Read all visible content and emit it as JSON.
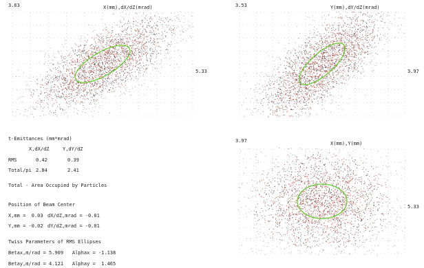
{
  "chart_data": [
    {
      "type": "scatter",
      "title": "X(mm),dX/dZ(mrad)",
      "x_max_label": "5.33",
      "y_max_label": "3.63",
      "xlim": [
        -5.33,
        5.33
      ],
      "ylim": [
        -3.63,
        3.63
      ],
      "grid": true,
      "ellipse": {
        "betax": 5.909,
        "alpha": -1.138,
        "rms_emittance": 0.42
      },
      "point_colors": [
        "#c0392b",
        "#555555",
        "#999999"
      ],
      "ellipse_color": "#66cc33"
    },
    {
      "type": "scatter",
      "title": "Y(mm),dY/dZ(mrad)",
      "x_max_label": "3.97",
      "y_max_label": "3.53",
      "xlim": [
        -3.97,
        3.97
      ],
      "ylim": [
        -3.53,
        3.53
      ],
      "grid": true,
      "ellipse": {
        "betay": 4.121,
        "alpha": 1.465,
        "rms_emittance": 0.39
      },
      "point_colors": [
        "#c0392b",
        "#555555",
        "#999999"
      ],
      "ellipse_color": "#66cc33"
    },
    {
      "type": "scatter",
      "title": "X(mm),Y(mm)",
      "x_max_label": "5.33",
      "y_max_label": "3.97",
      "xlim": [
        -5.33,
        5.33
      ],
      "ylim": [
        -3.97,
        3.97
      ],
      "grid": true,
      "ellipse": {
        "shape": "upright"
      },
      "point_colors": [
        "#c0392b",
        "#555555",
        "#999999"
      ],
      "ellipse_color": "#66cc33"
    }
  ],
  "info": {
    "emittance_title": "t-Emittances (mm*mrad)",
    "col1": "X,dX/dZ",
    "col2": "Y,dY/dZ",
    "rms_label": "RMS",
    "rms_x": "0.42",
    "rms_y": "0.39",
    "total_label": "Total/pi",
    "total_x": "2.84",
    "total_y": "2.41",
    "total_note": "Total - Area Occupied by Particles",
    "center_title": "Position of Beam Center",
    "center_x": "X,mm =  0.03",
    "center_dx": "dX/dZ,mrad = -0.01",
    "center_y": "Y,mm = -0.02",
    "center_dy": "dY/dZ,mrad = -0.01",
    "twiss_title": "Twiss Parameters of RMS Ellipses",
    "betax": "Betax,m/rad = 5.909",
    "alphax": "Alphax = -1.138",
    "betay": "Betay,m/rad = 4.121",
    "alphay": "Alphay =  1.465"
  }
}
